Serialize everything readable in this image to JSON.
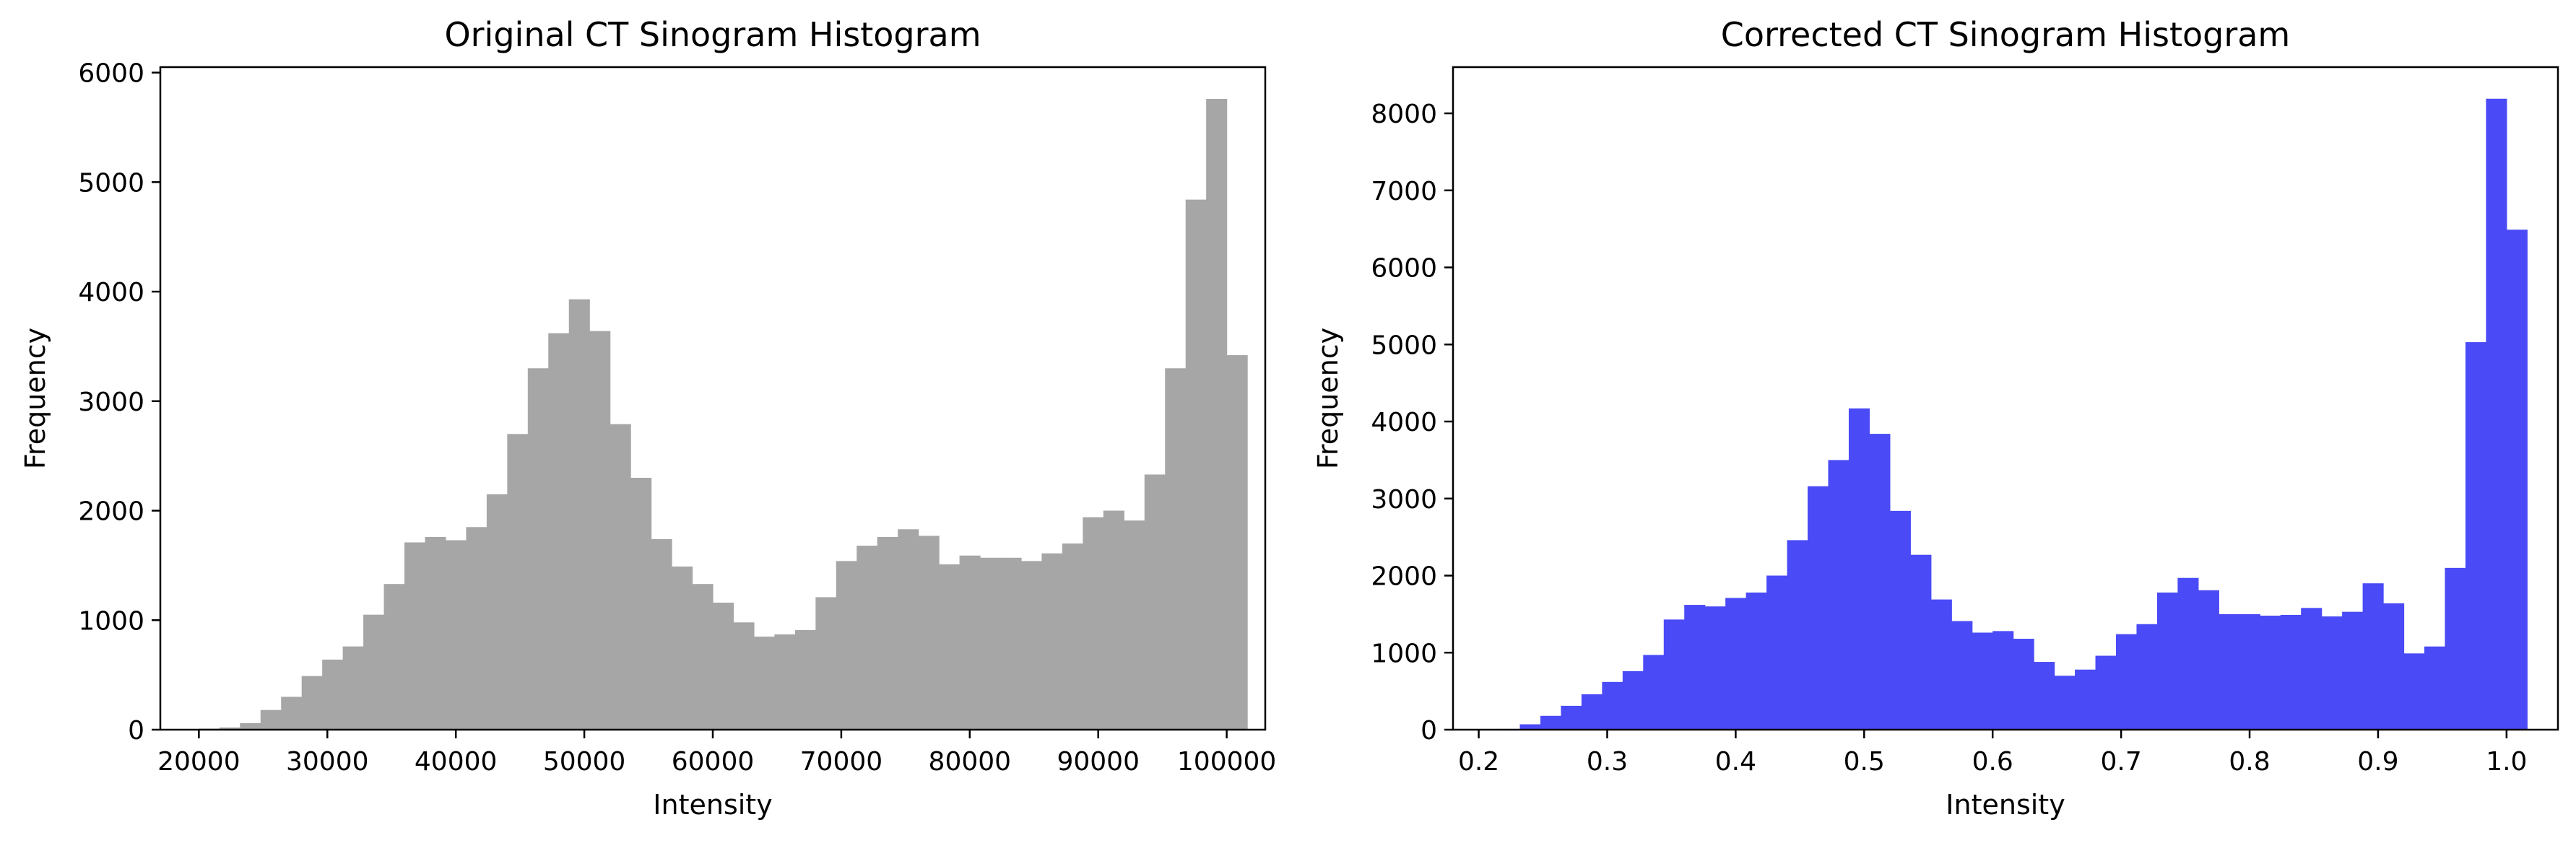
{
  "chart_data": [
    {
      "type": "bar",
      "title": "Original CT Sinogram Histogram",
      "xlabel": "Intensity",
      "ylabel": "Frequency",
      "xlim": [
        17000,
        103000
      ],
      "ylim": [
        0,
        6050
      ],
      "xticks": [
        20000,
        30000,
        40000,
        50000,
        60000,
        70000,
        80000,
        90000,
        100000
      ],
      "yticks": [
        0,
        1000,
        2000,
        3000,
        4000,
        5000,
        6000
      ],
      "color": "#a6a6a6",
      "bin_start": 20000,
      "bin_width": 1600,
      "values": [
        10,
        20,
        60,
        180,
        300,
        490,
        640,
        760,
        1050,
        1330,
        1710,
        1760,
        1730,
        1850,
        2150,
        2700,
        3300,
        3620,
        3930,
        3640,
        2790,
        2300,
        1740,
        1490,
        1330,
        1160,
        980,
        850,
        870,
        910,
        1210,
        1540,
        1680,
        1760,
        1830,
        1770,
        1510,
        1590,
        1570,
        1570,
        1540,
        1610,
        1700,
        1940,
        2000,
        1910,
        2330,
        3300,
        4840,
        5760,
        3420
      ],
      "grid": false
    },
    {
      "type": "bar",
      "title": "Corrected CT Sinogram Histogram",
      "xlabel": "Intensity",
      "ylabel": "Frequency",
      "xlim": [
        0.18,
        1.04
      ],
      "ylim": [
        0,
        8600
      ],
      "xticks": [
        0.2,
        0.3,
        0.4,
        0.5,
        0.6,
        0.7,
        0.8,
        0.9,
        1.0
      ],
      "xtick_labels": [
        "0.2",
        "0.3",
        "0.4",
        "0.5",
        "0.6",
        "0.7",
        "0.8",
        "0.9",
        "1.0"
      ],
      "yticks": [
        0,
        1000,
        2000,
        3000,
        4000,
        5000,
        6000,
        7000,
        8000
      ],
      "color": "#4a4af7",
      "bin_start": 0.2,
      "bin_width": 0.016,
      "values": [
        5,
        10,
        70,
        180,
        310,
        460,
        620,
        760,
        970,
        1430,
        1620,
        1600,
        1710,
        1780,
        2000,
        2460,
        3160,
        3500,
        4170,
        3840,
        2840,
        2270,
        1690,
        1410,
        1260,
        1280,
        1180,
        880,
        700,
        780,
        960,
        1240,
        1370,
        1780,
        1970,
        1810,
        1500,
        1500,
        1480,
        1490,
        1580,
        1470,
        1530,
        1900,
        1640,
        990,
        1080,
        2100,
        5030,
        8190,
        6490
      ],
      "grid": false
    }
  ]
}
